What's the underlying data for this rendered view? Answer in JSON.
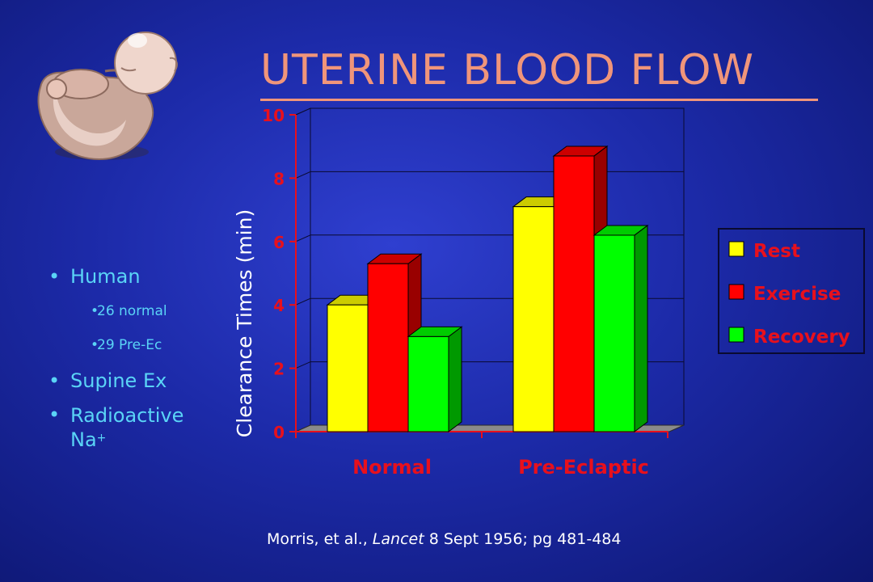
{
  "title": "UTERINE BLOOD FLOW",
  "bullets": {
    "human": "Human",
    "sub_items": [
      "26 normal",
      "29 Pre-Ec"
    ],
    "supine": "Supine Ex",
    "radioactive_line1": "Radioactive",
    "radioactive_line2": "Na",
    "radioactive_sup": "+"
  },
  "citation": {
    "authors": "Morris, et al.,",
    "journal": "Lancet",
    "rest": "8 Sept 1956; pg 481-484"
  },
  "colors": {
    "title": "#f0957a",
    "bullet_text": "#5ad4f6",
    "axis_labels": "#e8101c",
    "rest": "#ffff00",
    "exercise": "#ff0000",
    "recovery": "#00ff00"
  },
  "chart_data": {
    "type": "bar",
    "ylabel": "Clearance Times (min)",
    "categories": [
      "Normal",
      "Pre-Eclaptic"
    ],
    "series": [
      {
        "name": "Rest",
        "values": [
          4.0,
          7.1
        ]
      },
      {
        "name": "Exercise",
        "values": [
          5.3,
          8.7
        ]
      },
      {
        "name": "Recovery",
        "values": [
          3.0,
          6.2
        ]
      }
    ],
    "ylim": [
      0,
      10
    ],
    "yticks": [
      "0",
      "2",
      "4",
      "6",
      "8",
      "10"
    ],
    "grid": true,
    "legend_position": "right",
    "style": "3d-column"
  }
}
